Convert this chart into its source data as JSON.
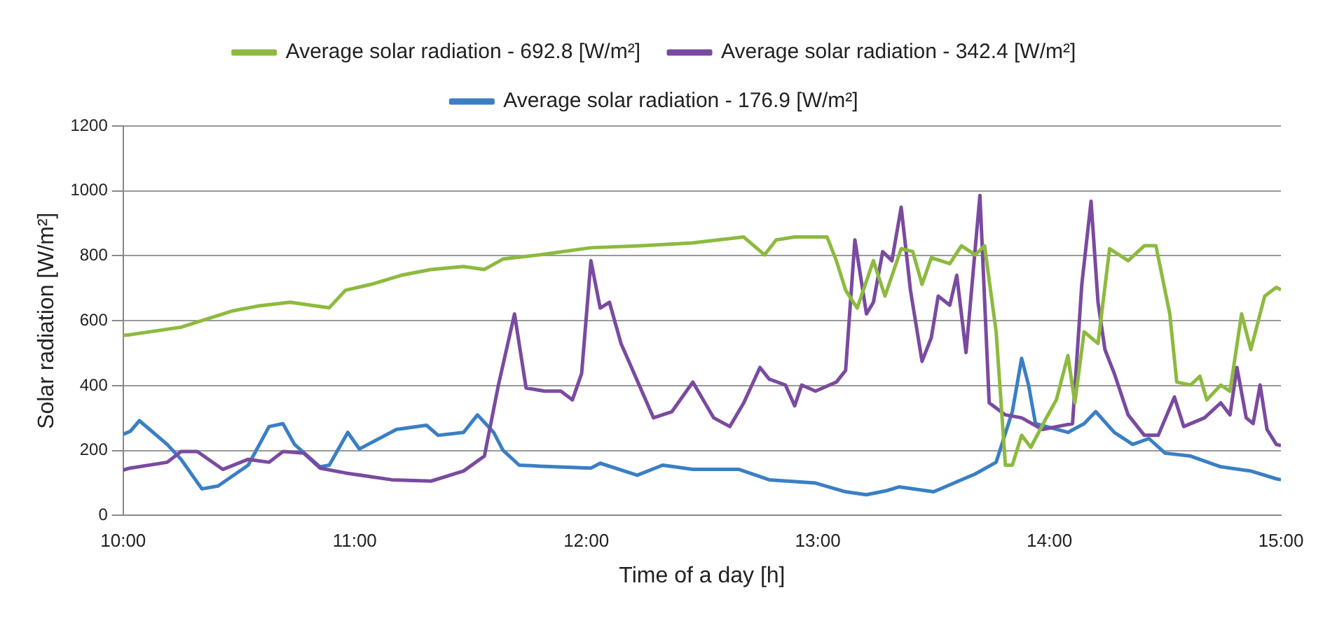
{
  "chart_data": {
    "type": "line",
    "xlabel": "Time of a day [h]",
    "ylabel": "Solar radiation [W/m²]",
    "xlim": [
      10,
      15
    ],
    "xticks": [
      {
        "value": 10,
        "label": "10:00"
      },
      {
        "value": 11,
        "label": "11:00"
      },
      {
        "value": 12,
        "label": "12:00"
      },
      {
        "value": 13,
        "label": "13:00"
      },
      {
        "value": 14,
        "label": "14:00"
      },
      {
        "value": 15,
        "label": "15:00"
      }
    ],
    "ylim": [
      0,
      1200
    ],
    "yticks": [
      0,
      200,
      400,
      600,
      800,
      1000,
      1200
    ],
    "grid": "y",
    "legend": "top",
    "marker": "none",
    "line_style": "solid",
    "series": [
      {
        "name": "Average solar radiation - 692.8 [W/m²]",
        "color": "#8dba3f",
        "x": [
          10.0,
          10.03,
          10.25,
          10.47,
          10.58,
          10.72,
          10.89,
          10.96,
          11.07,
          11.2,
          11.33,
          11.47,
          11.56,
          11.64,
          11.8,
          12.02,
          12.24,
          12.46,
          12.68,
          12.77,
          12.82,
          12.9,
          13.04,
          13.08,
          13.12,
          13.17,
          13.24,
          13.29,
          13.36,
          13.41,
          13.45,
          13.49,
          13.57,
          13.62,
          13.68,
          13.72,
          13.77,
          13.81,
          13.84,
          13.88,
          13.92,
          13.98,
          14.03,
          14.08,
          14.11,
          14.15,
          14.21,
          14.26,
          14.34,
          14.41,
          14.46,
          14.52,
          14.55,
          14.61,
          14.65,
          14.68,
          14.74,
          14.78,
          14.83,
          14.87,
          14.93,
          14.98,
          15.0
        ],
        "values": [
          555,
          557,
          580,
          630,
          645,
          657,
          640,
          694,
          712,
          740,
          758,
          767,
          758,
          790,
          803,
          825,
          831,
          840,
          858,
          803,
          849,
          858,
          858,
          785,
          694,
          639,
          785,
          676,
          822,
          813,
          712,
          794,
          776,
          831,
          803,
          831,
          566,
          155,
          155,
          247,
          210,
          292,
          356,
          493,
          347,
          566,
          530,
          822,
          785,
          831,
          831,
          621,
          411,
          402,
          429,
          356,
          402,
          383,
          621,
          511,
          676,
          703,
          695
        ]
      },
      {
        "name": "Average solar radiation - 342.4 [W/m²]",
        "color": "#7a4aa0",
        "x": [
          10.0,
          10.03,
          10.19,
          10.25,
          10.32,
          10.43,
          10.54,
          10.63,
          10.69,
          10.78,
          10.85,
          10.96,
          11.16,
          11.33,
          11.47,
          11.56,
          11.62,
          11.69,
          11.74,
          11.82,
          11.89,
          11.94,
          11.98,
          12.02,
          12.06,
          12.1,
          12.15,
          12.29,
          12.37,
          12.46,
          12.55,
          12.62,
          12.68,
          12.75,
          12.79,
          12.86,
          12.9,
          12.93,
          12.99,
          13.08,
          13.12,
          13.16,
          13.21,
          13.24,
          13.28,
          13.32,
          13.36,
          13.4,
          13.45,
          13.49,
          13.52,
          13.57,
          13.6,
          13.64,
          13.7,
          13.74,
          13.81,
          13.88,
          13.97,
          14.1,
          14.14,
          14.18,
          14.21,
          14.24,
          14.28,
          14.34,
          14.41,
          14.47,
          14.54,
          14.58,
          14.67,
          14.74,
          14.78,
          14.81,
          14.85,
          14.88,
          14.91,
          14.94,
          14.98,
          15.0
        ],
        "values": [
          140,
          146,
          164,
          197,
          197,
          142,
          173,
          164,
          197,
          192,
          146,
          131,
          110,
          106,
          137,
          183,
          400,
          621,
          393,
          383,
          383,
          356,
          438,
          785,
          639,
          657,
          530,
          301,
          320,
          411,
          301,
          274,
          347,
          456,
          420,
          402,
          338,
          402,
          383,
          411,
          447,
          849,
          621,
          657,
          813,
          785,
          950,
          694,
          475,
          548,
          676,
          648,
          740,
          502,
          986,
          347,
          310,
          301,
          265,
          283,
          712,
          968,
          657,
          511,
          438,
          310,
          247,
          247,
          365,
          274,
          301,
          347,
          310,
          456,
          301,
          283,
          402,
          265,
          219,
          215
        ]
      },
      {
        "name": "Average solar radiation - 176.9 [W/m²]",
        "color": "#3a7fc4",
        "x": [
          10.0,
          10.03,
          10.07,
          10.19,
          10.25,
          10.34,
          10.41,
          10.54,
          10.63,
          10.69,
          10.74,
          10.85,
          10.89,
          10.97,
          11.02,
          11.18,
          11.31,
          11.36,
          11.47,
          11.53,
          11.6,
          11.64,
          11.71,
          11.8,
          12.02,
          12.06,
          12.22,
          12.33,
          12.46,
          12.66,
          12.79,
          12.99,
          13.12,
          13.21,
          13.3,
          13.35,
          13.5,
          13.68,
          13.77,
          13.84,
          13.88,
          13.91,
          13.94,
          14.08,
          14.15,
          14.2,
          14.28,
          14.36,
          14.43,
          14.5,
          14.61,
          14.74,
          14.87,
          14.98,
          15.0
        ],
        "values": [
          250,
          259,
          292,
          219,
          173,
          82,
          91,
          155,
          274,
          283,
          219,
          150,
          155,
          256,
          205,
          265,
          278,
          247,
          256,
          310,
          256,
          201,
          155,
          152,
          146,
          161,
          124,
          155,
          142,
          142,
          110,
          100,
          73,
          64,
          77,
          88,
          73,
          128,
          164,
          320,
          484,
          402,
          283,
          256,
          283,
          320,
          256,
          219,
          237,
          192,
          183,
          150,
          137,
          113,
          110
        ]
      }
    ]
  }
}
